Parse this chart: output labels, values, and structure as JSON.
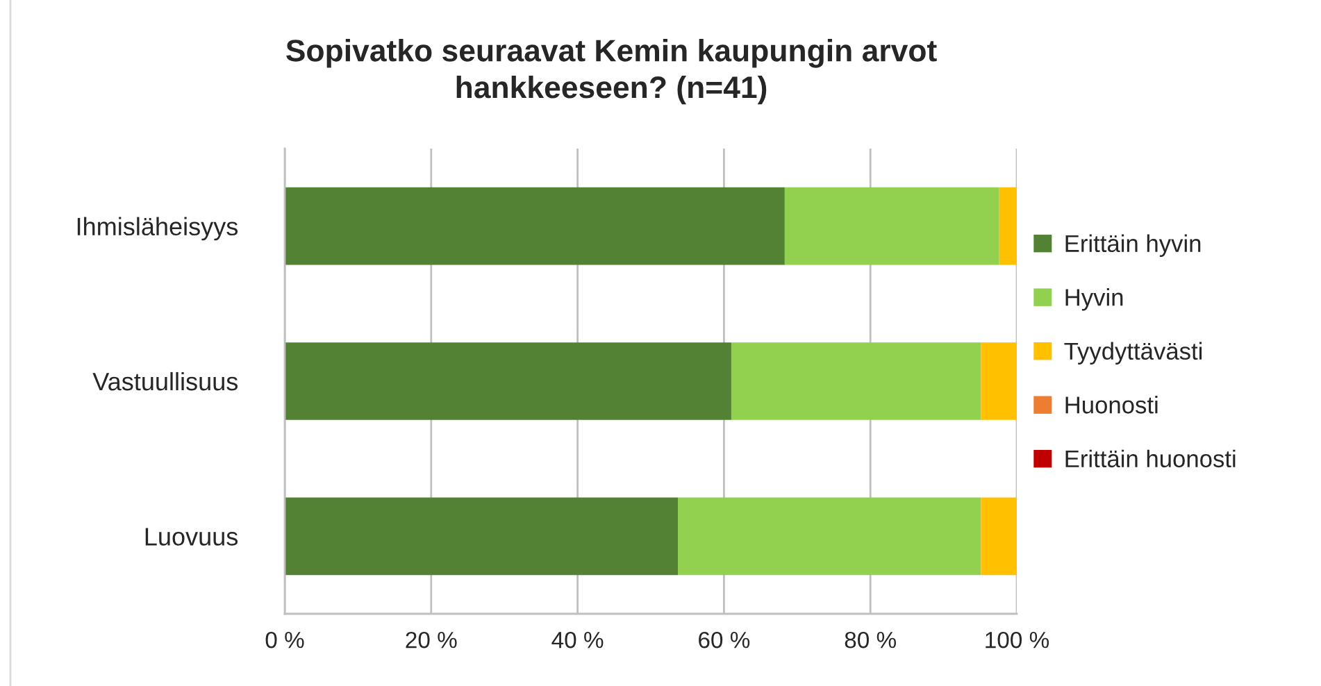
{
  "chart_data": {
    "type": "bar",
    "orientation": "horizontal",
    "stacked": true,
    "title": "Sopivatko seuraavat Kemin kaupungin arvot\nhankkeeseen? (n=41)",
    "categories": [
      "Ihmisläheisyys",
      "Vastuullisuus",
      "Luovuus"
    ],
    "series": [
      {
        "name": "Erittäin hyvin",
        "color": "#548235",
        "values": [
          68.3,
          61.0,
          53.7
        ]
      },
      {
        "name": "Hyvin",
        "color": "#92d050",
        "values": [
          29.3,
          34.1,
          41.4
        ]
      },
      {
        "name": "Tyydyttävästi",
        "color": "#ffc000",
        "values": [
          2.4,
          4.9,
          4.9
        ]
      },
      {
        "name": "Huonosti",
        "color": "#ed7d31",
        "values": [
          0,
          0,
          0
        ]
      },
      {
        "name": "Erittäin huonosti",
        "color": "#c00000",
        "values": [
          0,
          0,
          0
        ]
      }
    ],
    "xlim": [
      0,
      100
    ],
    "xticks": [
      {
        "value": 0,
        "label": "0 %"
      },
      {
        "value": 20,
        "label": "20 %"
      },
      {
        "value": 40,
        "label": "40 %"
      },
      {
        "value": 60,
        "label": "60 %"
      },
      {
        "value": 80,
        "label": "80 %"
      },
      {
        "value": 100,
        "label": "100 %"
      }
    ],
    "grid": "x",
    "legend": "right"
  }
}
